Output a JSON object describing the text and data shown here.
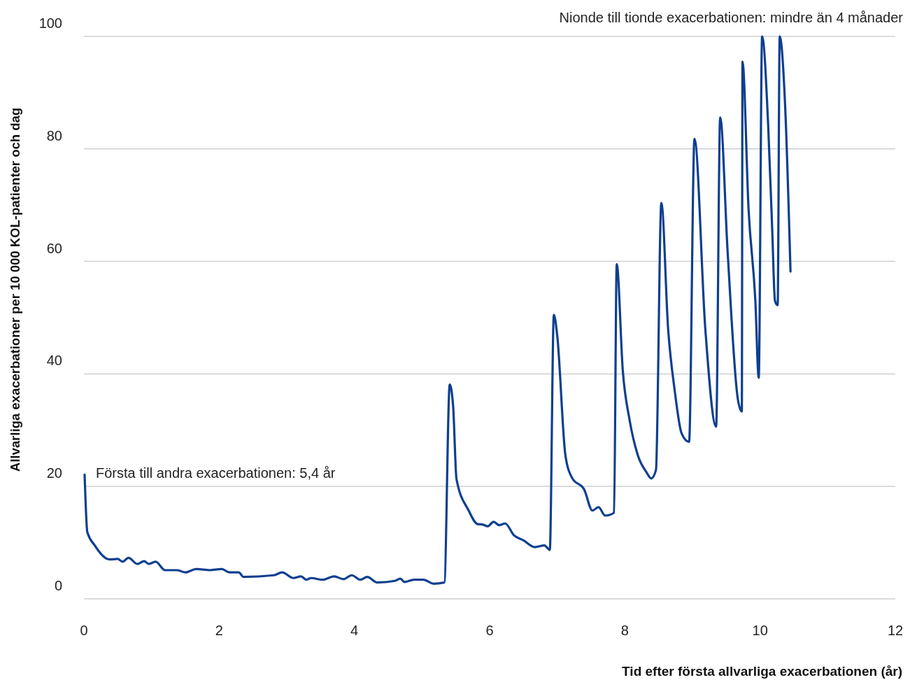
{
  "chart_data": {
    "type": "line",
    "xlabel": "Tid efter första allvarliga exacerbationen (år)",
    "ylabel": "Allvarliga exacerbationer per 10 000 KOL-patienter och dag",
    "annotations": [
      "Första till andra exacerbationen: 5,4 år",
      "Nionde till tionde exacerbationen: mindre än 4 månader"
    ],
    "xlim": [
      0,
      12
    ],
    "xticks": [
      0,
      2,
      4,
      6,
      8,
      10,
      12
    ],
    "ylim": [
      0,
      100
    ],
    "yticks": [
      0,
      20,
      40,
      60,
      80,
      100
    ],
    "grid": "y",
    "marker": "none",
    "line_style": "solid",
    "series": [
      {
        "color": "#0d3f8f",
        "x": [
          0.01,
          0.05,
          0.16,
          0.38,
          0.5,
          0.57,
          0.66,
          0.79,
          0.89,
          0.96,
          1.06,
          1.2,
          1.38,
          1.5,
          1.66,
          1.86,
          2.04,
          2.15,
          2.29,
          2.36,
          2.81,
          2.93,
          3.1,
          3.21,
          3.29,
          3.36,
          3.53,
          3.7,
          3.84,
          3.96,
          4.09,
          4.19,
          4.34,
          4.6,
          4.68,
          4.74,
          4.88,
          5.02,
          5.17,
          5.33,
          5.41,
          5.46,
          5.51,
          5.69,
          5.82,
          5.9,
          5.97,
          6.06,
          6.14,
          6.23,
          6.36,
          6.5,
          6.67,
          6.81,
          6.89,
          6.95,
          7.0,
          7.12,
          7.22,
          7.4,
          7.52,
          7.61,
          7.71,
          7.84,
          7.88,
          7.97,
          8.07,
          8.19,
          8.32,
          8.39,
          8.46,
          8.54,
          8.64,
          8.74,
          8.84,
          8.95,
          9.03,
          9.19,
          9.35,
          9.41,
          9.52,
          9.67,
          9.73,
          9.74,
          9.83,
          9.93,
          9.98,
          10.03,
          10.12,
          10.18,
          10.22,
          10.26,
          10.29,
          10.37,
          10.45
        ],
        "values": [
          22.1,
          11.9,
          9.5,
          7.0,
          7.1,
          6.6,
          7.3,
          6.2,
          6.7,
          6.2,
          6.6,
          5.1,
          5.1,
          4.7,
          5.3,
          5.1,
          5.3,
          4.7,
          4.7,
          3.9,
          4.2,
          4.7,
          3.7,
          4.0,
          3.4,
          3.7,
          3.4,
          4.0,
          3.5,
          4.2,
          3.4,
          3.9,
          2.9,
          3.2,
          3.6,
          3.0,
          3.4,
          3.4,
          2.7,
          2.9,
          38.1,
          34.3,
          21.3,
          15.7,
          13.3,
          13.2,
          12.9,
          13.7,
          13.1,
          13.4,
          11.3,
          10.4,
          9.2,
          9.5,
          8.7,
          50.5,
          46.8,
          25.6,
          21.5,
          19.4,
          15.7,
          16.3,
          14.8,
          15.3,
          59.5,
          40.5,
          31.8,
          25.6,
          22.5,
          21.4,
          22.9,
          70.4,
          48.0,
          36.8,
          29.4,
          27.9,
          81.8,
          48.0,
          30.6,
          85.6,
          61.7,
          35.6,
          33.3,
          95.5,
          69.2,
          53.0,
          39.3,
          100,
          84.1,
          65.4,
          53.0,
          52.2,
          100,
          87.8,
          58.2
        ]
      }
    ]
  }
}
